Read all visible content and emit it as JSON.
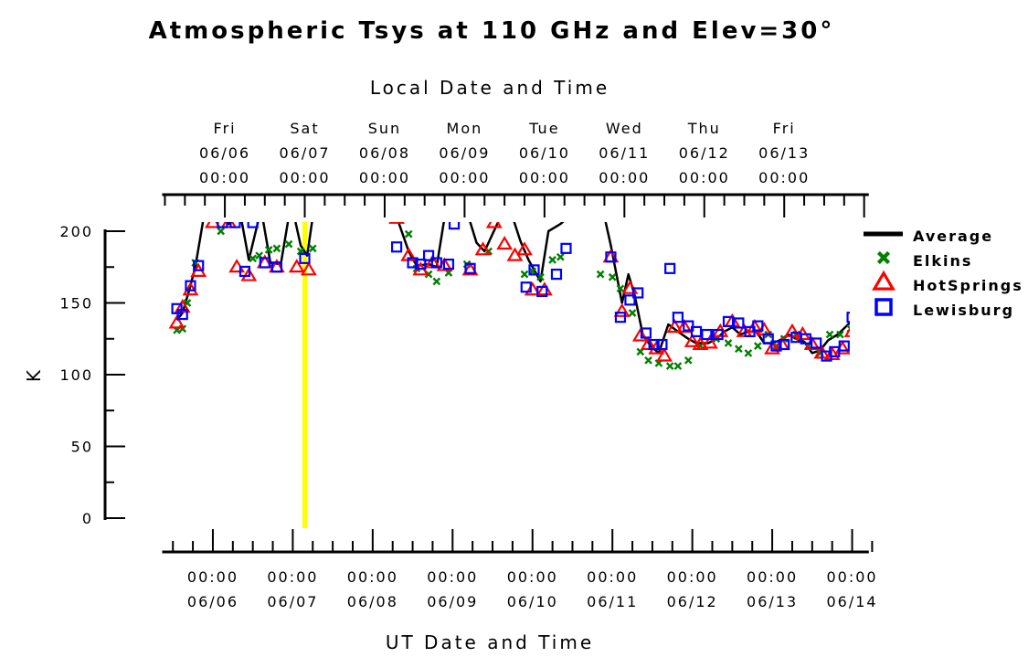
{
  "chart_data": {
    "type": "scatter",
    "title": "Atmospheric Tsys at 110 GHz and Elev=30°",
    "top_axis_title": "Local Date and Time",
    "xlabel": "UT Date and Time",
    "ylabel": "K",
    "ylim": [
      0,
      200
    ],
    "y_ticks": [
      "0",
      "50",
      "100",
      "150",
      "200"
    ],
    "x_unit": "UT days since 06/05 00:00",
    "xlim": [
      0.4,
      9.3
    ],
    "bottom_ticks": [
      {
        "x": 1,
        "time": "00:00",
        "date": "06/06"
      },
      {
        "x": 2,
        "time": "00:00",
        "date": "06/07"
      },
      {
        "x": 3,
        "time": "00:00",
        "date": "06/08"
      },
      {
        "x": 4,
        "time": "00:00",
        "date": "06/09"
      },
      {
        "x": 5,
        "time": "00:00",
        "date": "06/10"
      },
      {
        "x": 6,
        "time": "00:00",
        "date": "06/11"
      },
      {
        "x": 7,
        "time": "00:00",
        "date": "06/12"
      },
      {
        "x": 8,
        "time": "00:00",
        "date": "06/13"
      },
      {
        "x": 9,
        "time": "00:00",
        "date": "06/14"
      }
    ],
    "top_ticks": [
      {
        "x": 1.15,
        "day": "Fri",
        "date": "06/06",
        "time": "00:00"
      },
      {
        "x": 2.15,
        "day": "Sat",
        "date": "06/07",
        "time": "00:00"
      },
      {
        "x": 3.15,
        "day": "Sun",
        "date": "06/08",
        "time": "00:00"
      },
      {
        "x": 4.15,
        "day": "Mon",
        "date": "06/09",
        "time": "00:00"
      },
      {
        "x": 5.15,
        "day": "Tue",
        "date": "06/10",
        "time": "00:00"
      },
      {
        "x": 6.15,
        "day": "Wed",
        "date": "06/11",
        "time": "00:00"
      },
      {
        "x": 7.15,
        "day": "Thu",
        "date": "06/12",
        "time": "00:00"
      },
      {
        "x": 8.15,
        "day": "Fri",
        "date": "06/13",
        "time": "00:00"
      }
    ],
    "marker_line": {
      "x": 2.15,
      "color": "#ffff00"
    },
    "legend_position": "right",
    "series": [
      {
        "name": "Average",
        "style": "line",
        "color": "#000000",
        "segments": [
          [
            [
              0.55,
              138
            ],
            [
              0.62,
              143
            ],
            [
              0.7,
              158
            ],
            [
              0.78,
              175
            ],
            [
              0.88,
              208
            ]
          ],
          [
            [
              1.0,
              210
            ],
            [
              1.1,
              210
            ],
            [
              1.2,
              205
            ],
            [
              1.28,
              210
            ]
          ],
          [
            [
              1.35,
              210
            ],
            [
              1.45,
              180
            ],
            [
              1.58,
              210
            ]
          ],
          [
            [
              1.62,
              210
            ],
            [
              1.72,
              178
            ],
            [
              1.85,
              177
            ],
            [
              1.95,
              210
            ]
          ],
          [
            [
              2.02,
              210
            ],
            [
              2.1,
              190
            ],
            [
              2.18,
              183
            ],
            [
              2.25,
              210
            ]
          ],
          [
            [
              3.3,
              210
            ],
            [
              3.45,
              186
            ],
            [
              3.55,
              176
            ],
            [
              3.7,
              177
            ],
            [
              3.8,
              175
            ],
            [
              3.9,
              210
            ]
          ],
          [
            [
              4.2,
              210
            ],
            [
              4.3,
              192
            ],
            [
              4.4,
              186
            ],
            [
              4.5,
              198
            ],
            [
              4.6,
              210
            ]
          ],
          [
            [
              4.75,
              210
            ],
            [
              4.85,
              193
            ],
            [
              4.95,
              180
            ],
            [
              5.1,
              165
            ],
            [
              5.2,
              200
            ],
            [
              5.35,
              205
            ],
            [
              5.45,
              210
            ]
          ],
          [
            [
              5.9,
              210
            ],
            [
              5.98,
              190
            ],
            [
              6.05,
              170
            ],
            [
              6.12,
              150
            ],
            [
              6.2,
              170
            ],
            [
              6.28,
              155
            ],
            [
              6.38,
              128
            ],
            [
              6.48,
              120
            ],
            [
              6.58,
              115
            ],
            [
              6.7,
              135
            ],
            [
              6.82,
              130
            ],
            [
              6.95,
              125
            ],
            [
              7.05,
              122
            ],
            [
              7.2,
              122
            ],
            [
              7.3,
              125
            ],
            [
              7.4,
              130
            ],
            [
              7.5,
              133
            ],
            [
              7.6,
              128
            ],
            [
              7.7,
              130
            ],
            [
              7.8,
              130
            ],
            [
              7.9,
              122
            ],
            [
              8.0,
              122
            ],
            [
              8.1,
              124
            ],
            [
              8.2,
              128
            ],
            [
              8.3,
              125
            ],
            [
              8.4,
              123
            ],
            [
              8.5,
              115
            ],
            [
              8.6,
              117
            ],
            [
              8.7,
              124
            ],
            [
              8.82,
              128
            ],
            [
              8.95,
              135
            ],
            [
              9.05,
              140
            ]
          ]
        ]
      },
      {
        "name": "Elkins",
        "marker": "x",
        "color": "#008000",
        "points": [
          [
            0.55,
            131
          ],
          [
            0.62,
            132
          ],
          [
            0.68,
            150
          ],
          [
            0.78,
            178
          ],
          [
            1.1,
            200
          ],
          [
            1.25,
            210
          ],
          [
            1.5,
            181
          ],
          [
            1.58,
            183
          ],
          [
            1.7,
            187
          ],
          [
            1.8,
            188
          ],
          [
            1.95,
            191
          ],
          [
            2.1,
            186
          ],
          [
            2.25,
            188
          ],
          [
            3.45,
            198
          ],
          [
            3.55,
            174
          ],
          [
            3.7,
            170
          ],
          [
            3.8,
            165
          ],
          [
            3.95,
            171
          ],
          [
            4.18,
            177
          ],
          [
            4.35,
            210
          ],
          [
            4.45,
            186
          ],
          [
            4.9,
            170
          ],
          [
            5.0,
            172
          ],
          [
            5.1,
            168
          ],
          [
            5.25,
            180
          ],
          [
            5.35,
            182
          ],
          [
            5.85,
            170
          ],
          [
            6.0,
            168
          ],
          [
            6.1,
            160
          ],
          [
            6.25,
            143
          ],
          [
            6.35,
            116
          ],
          [
            6.45,
            110
          ],
          [
            6.58,
            108
          ],
          [
            6.72,
            106
          ],
          [
            6.82,
            106
          ],
          [
            6.95,
            110
          ],
          [
            7.1,
            120
          ],
          [
            7.3,
            125
          ],
          [
            7.45,
            122
          ],
          [
            7.58,
            118
          ],
          [
            7.7,
            115
          ],
          [
            7.82,
            120
          ],
          [
            7.95,
            128
          ],
          [
            8.05,
            120
          ],
          [
            8.15,
            125
          ],
          [
            8.3,
            128
          ],
          [
            8.45,
            120
          ],
          [
            8.6,
            115
          ],
          [
            8.72,
            128
          ],
          [
            8.85,
            128
          ],
          [
            8.98,
            132
          ],
          [
            9.1,
            133
          ]
        ]
      },
      {
        "name": "HotSprings",
        "marker": "triangle",
        "color": "#ff0000",
        "points": [
          [
            0.55,
            136
          ],
          [
            0.62,
            147
          ],
          [
            0.72,
            159
          ],
          [
            0.82,
            172
          ],
          [
            1.0,
            206
          ],
          [
            1.2,
            206
          ],
          [
            1.3,
            175
          ],
          [
            1.45,
            169
          ],
          [
            1.65,
            178
          ],
          [
            1.8,
            175
          ],
          [
            2.05,
            175
          ],
          [
            2.2,
            173
          ],
          [
            3.3,
            209
          ],
          [
            3.45,
            183
          ],
          [
            3.6,
            173
          ],
          [
            3.75,
            178
          ],
          [
            3.9,
            176
          ],
          [
            4.22,
            173
          ],
          [
            4.38,
            187
          ],
          [
            4.52,
            206
          ],
          [
            4.65,
            191
          ],
          [
            4.78,
            183
          ],
          [
            4.9,
            187
          ],
          [
            5.0,
            159
          ],
          [
            5.15,
            159
          ],
          [
            5.98,
            182
          ],
          [
            6.12,
            144
          ],
          [
            6.22,
            160
          ],
          [
            6.35,
            127
          ],
          [
            6.45,
            121
          ],
          [
            6.55,
            118
          ],
          [
            6.65,
            113
          ],
          [
            6.78,
            133
          ],
          [
            6.9,
            133
          ],
          [
            7.0,
            123
          ],
          [
            7.1,
            121
          ],
          [
            7.22,
            122
          ],
          [
            7.35,
            130
          ],
          [
            7.5,
            137
          ],
          [
            7.65,
            130
          ],
          [
            7.78,
            133
          ],
          [
            7.9,
            131
          ],
          [
            8.0,
            118
          ],
          [
            8.12,
            121
          ],
          [
            8.25,
            130
          ],
          [
            8.38,
            128
          ],
          [
            8.5,
            121
          ],
          [
            8.62,
            115
          ],
          [
            8.75,
            114
          ],
          [
            8.88,
            118
          ],
          [
            9.0,
            130
          ],
          [
            9.12,
            141
          ]
        ]
      },
      {
        "name": "Lewisburg",
        "marker": "square",
        "color": "#0000ff",
        "points": [
          [
            0.55,
            146
          ],
          [
            0.62,
            142
          ],
          [
            0.72,
            162
          ],
          [
            0.82,
            176
          ],
          [
            1.12,
            206
          ],
          [
            1.28,
            206
          ],
          [
            1.4,
            172
          ],
          [
            1.5,
            206
          ],
          [
            1.65,
            178
          ],
          [
            1.8,
            175
          ],
          [
            2.15,
            181
          ],
          [
            3.3,
            189
          ],
          [
            3.5,
            178
          ],
          [
            3.6,
            177
          ],
          [
            3.7,
            183
          ],
          [
            3.8,
            178
          ],
          [
            3.95,
            177
          ],
          [
            4.02,
            205
          ],
          [
            4.22,
            174
          ],
          [
            4.92,
            161
          ],
          [
            5.02,
            173
          ],
          [
            5.12,
            158
          ],
          [
            5.3,
            170
          ],
          [
            5.42,
            188
          ],
          [
            5.98,
            182
          ],
          [
            6.1,
            140
          ],
          [
            6.22,
            152
          ],
          [
            6.32,
            157
          ],
          [
            6.42,
            129
          ],
          [
            6.52,
            121
          ],
          [
            6.62,
            121
          ],
          [
            6.72,
            174
          ],
          [
            6.82,
            140
          ],
          [
            6.95,
            134
          ],
          [
            7.05,
            130
          ],
          [
            7.18,
            128
          ],
          [
            7.32,
            128
          ],
          [
            7.45,
            137
          ],
          [
            7.58,
            136
          ],
          [
            7.72,
            130
          ],
          [
            7.82,
            134
          ],
          [
            7.95,
            125
          ],
          [
            8.05,
            120
          ],
          [
            8.15,
            121
          ],
          [
            8.3,
            126
          ],
          [
            8.42,
            125
          ],
          [
            8.55,
            122
          ],
          [
            8.68,
            113
          ],
          [
            8.78,
            116
          ],
          [
            8.9,
            120
          ],
          [
            9.0,
            140
          ],
          [
            9.1,
            150
          ]
        ]
      }
    ]
  }
}
